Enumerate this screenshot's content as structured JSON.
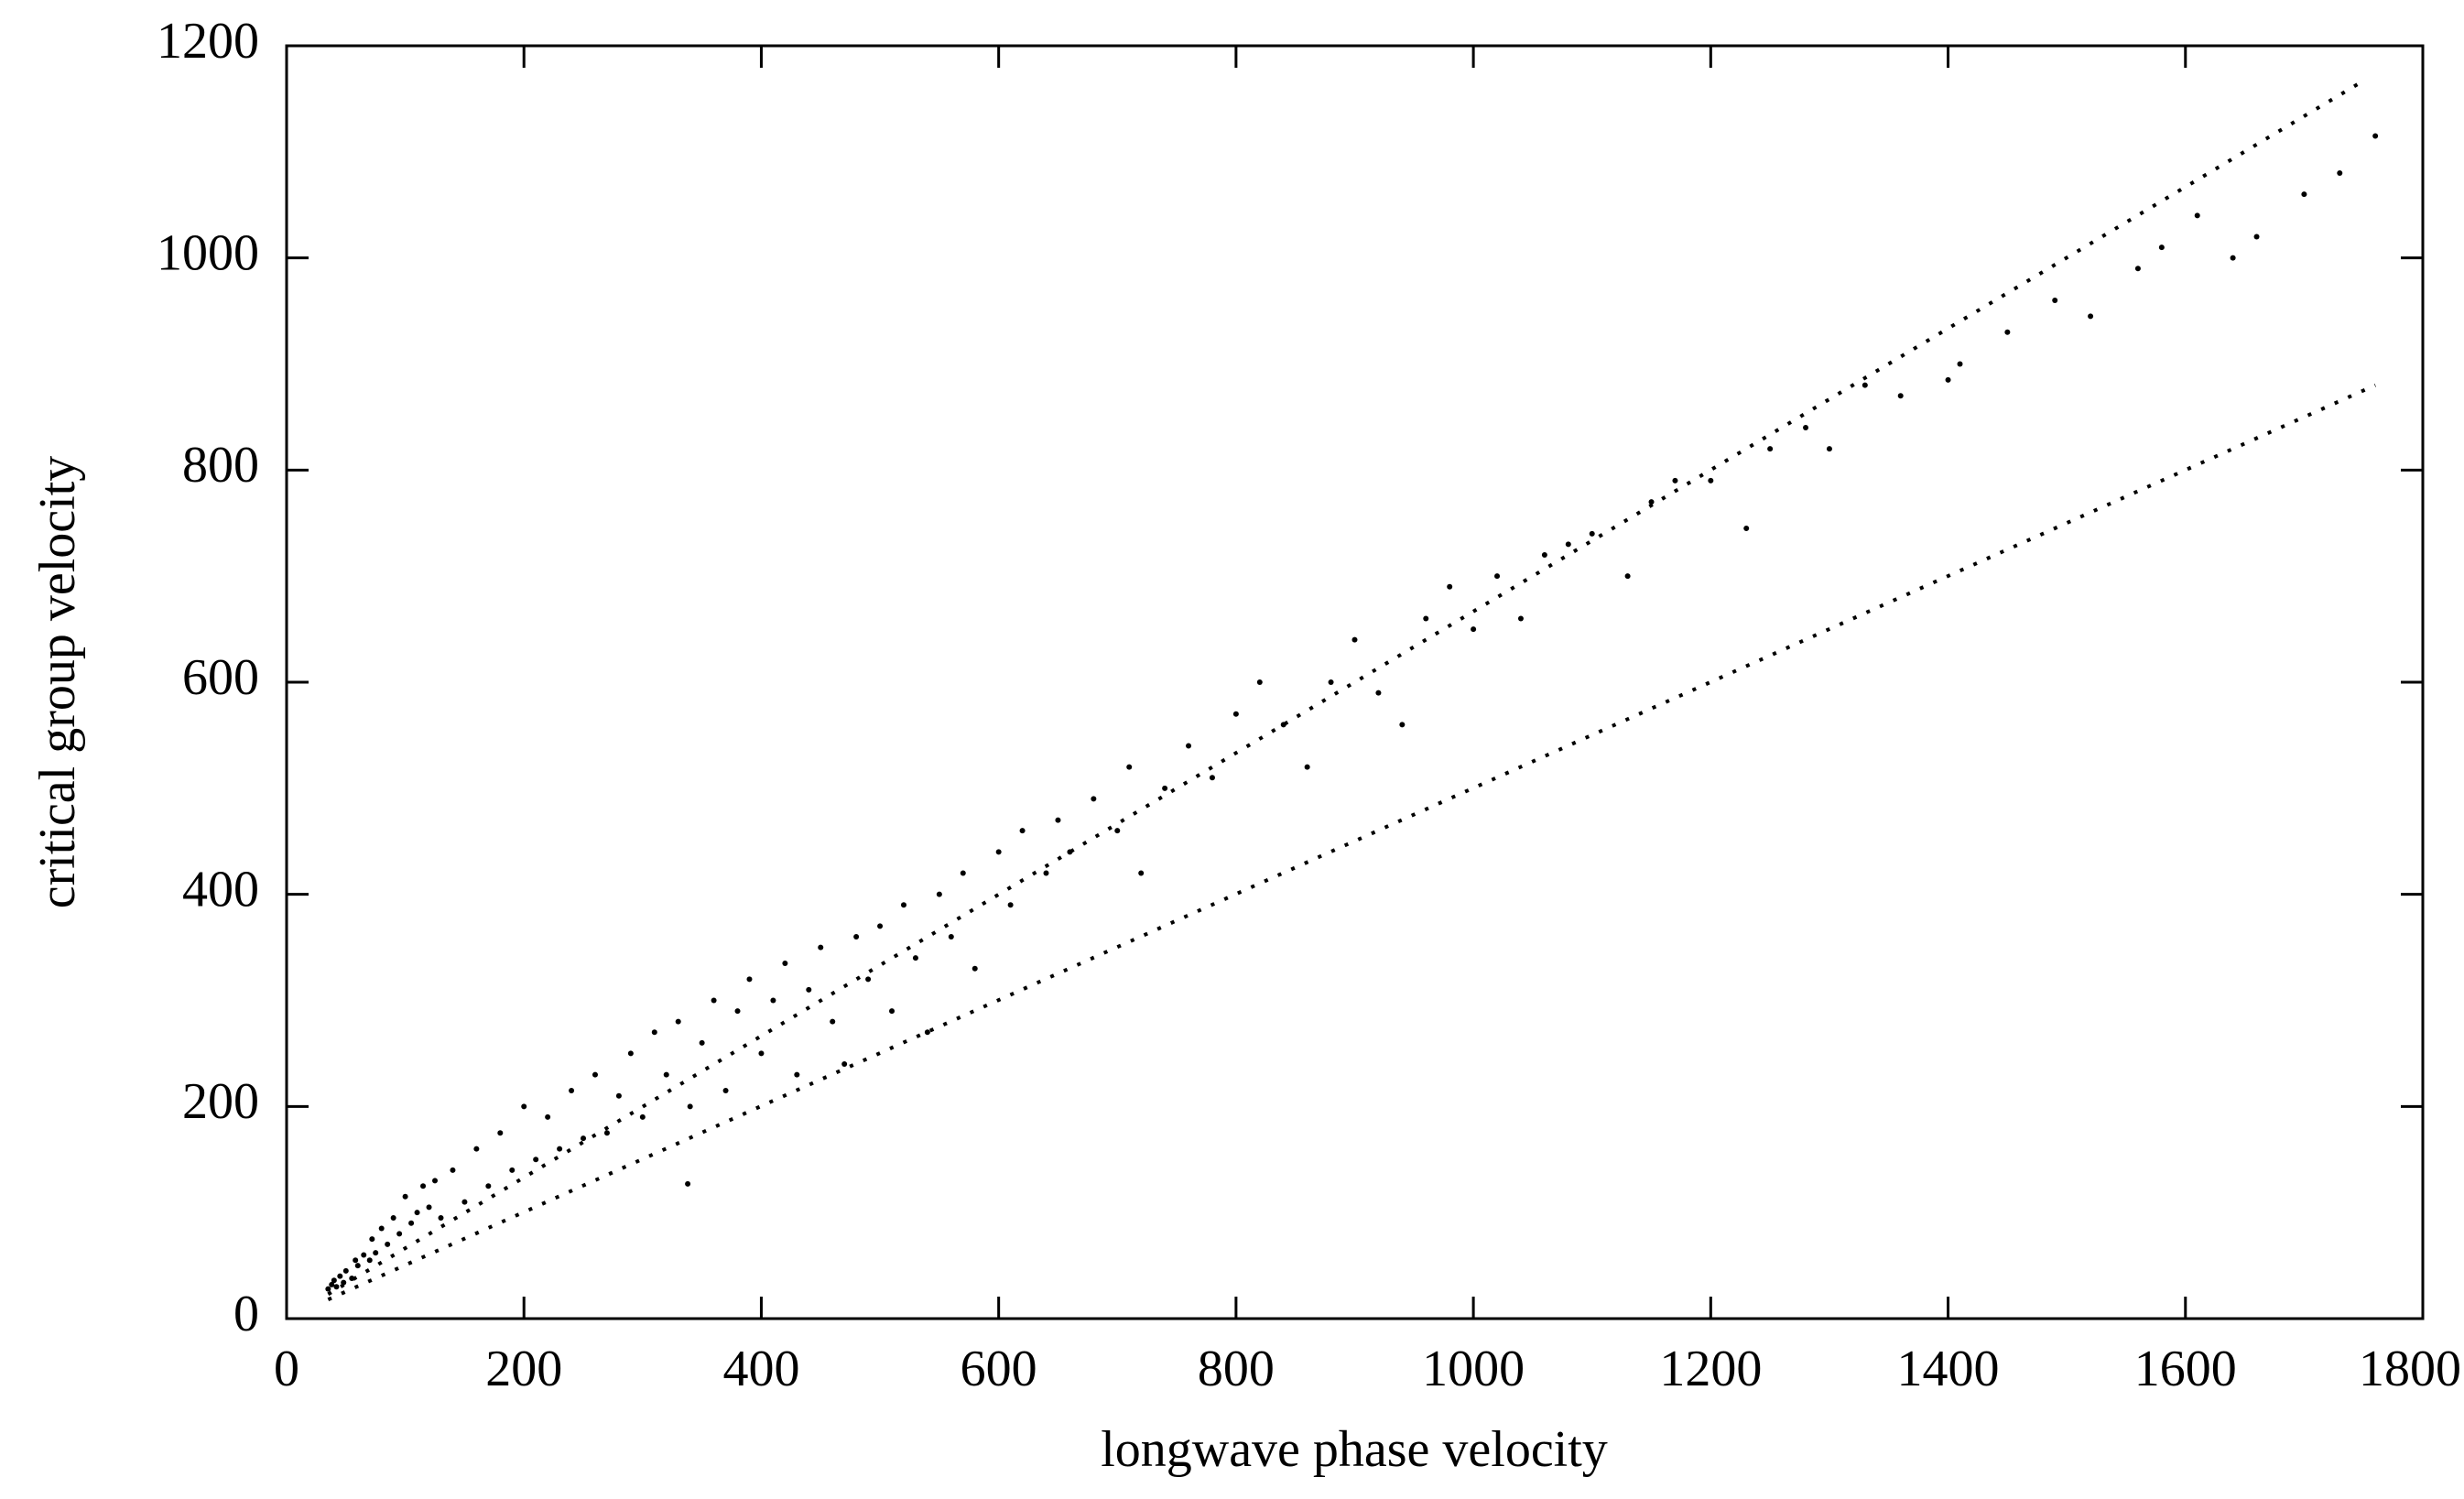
{
  "chart_data": {
    "type": "scatter",
    "xlabel": "longwave phase velocity",
    "ylabel": "critical group velocity",
    "xlim": [
      0,
      1800
    ],
    "xticks": [
      0,
      200,
      400,
      600,
      800,
      1000,
      1200,
      1400,
      1600,
      1800
    ],
    "ylim": [
      0,
      1200
    ],
    "yticks": [
      0,
      200,
      400,
      600,
      800,
      1000,
      1200
    ],
    "grid": false,
    "series": [
      {
        "type": "scatter",
        "color": "#000000",
        "x": [
          35,
          38,
          40,
          42,
          45,
          48,
          50,
          55,
          58,
          60,
          65,
          70,
          72,
          75,
          80,
          85,
          90,
          95,
          100,
          105,
          110,
          115,
          120,
          125,
          130,
          140,
          150,
          160,
          170,
          180,
          190,
          200,
          210,
          220,
          230,
          240,
          250,
          260,
          270,
          280,
          290,
          300,
          310,
          320,
          330,
          340,
          350,
          360,
          370,
          380,
          390,
          400,
          410,
          420,
          430,
          440,
          450,
          460,
          470,
          480,
          490,
          500,
          510,
          520,
          530,
          540,
          550,
          560,
          570,
          580,
          600,
          610,
          620,
          640,
          650,
          660,
          680,
          700,
          710,
          720,
          740,
          760,
          780,
          800,
          820,
          840,
          860,
          880,
          900,
          920,
          940,
          960,
          980,
          1000,
          1020,
          1040,
          1060,
          1080,
          1100,
          1130,
          1150,
          1170,
          1200,
          1230,
          1250,
          1280,
          1300,
          1330,
          1360,
          1400,
          1410,
          1450,
          1490,
          1520,
          1560,
          1580,
          1610,
          1640,
          1660,
          1700,
          1730,
          1760,
          338
        ],
        "values": [
          28,
          32,
          36,
          30,
          40,
          34,
          45,
          38,
          55,
          50,
          60,
          55,
          75,
          62,
          85,
          70,
          95,
          80,
          115,
          90,
          100,
          125,
          105,
          130,
          95,
          140,
          110,
          160,
          125,
          175,
          140,
          200,
          150,
          190,
          160,
          215,
          170,
          230,
          175,
          210,
          250,
          190,
          270,
          230,
          280,
          200,
          260,
          300,
          215,
          290,
          320,
          250,
          300,
          335,
          230,
          310,
          350,
          280,
          240,
          360,
          320,
          370,
          290,
          390,
          340,
          270,
          400,
          360,
          420,
          330,
          440,
          390,
          460,
          420,
          470,
          440,
          490,
          460,
          520,
          420,
          500,
          540,
          510,
          570,
          600,
          560,
          520,
          600,
          640,
          590,
          560,
          660,
          690,
          650,
          700,
          660,
          720,
          730,
          740,
          700,
          770,
          790,
          790,
          745,
          820,
          840,
          820,
          880,
          870,
          885,
          900,
          930,
          960,
          945,
          990,
          1010,
          1040,
          1000,
          1020,
          1060,
          1080,
          1115,
          127
        ]
      },
      {
        "type": "line",
        "color": "#000000",
        "x": [
          35,
          1750
        ],
        "values": [
          23,
          1167
        ]
      },
      {
        "type": "line",
        "color": "#000000",
        "x": [
          35,
          1760
        ],
        "values": [
          18,
          880
        ]
      }
    ]
  }
}
